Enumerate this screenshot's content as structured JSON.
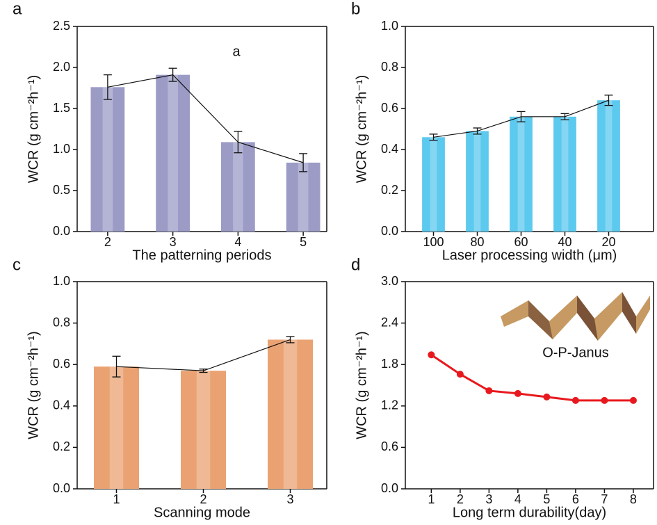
{
  "chart_data": [
    {
      "type": "bar",
      "panel": "a",
      "annotation": "a",
      "xlabel": "The patterning periods",
      "ylabel": "WCR (g cm⁻²h⁻¹)",
      "categories": [
        "2",
        "3",
        "4",
        "5"
      ],
      "values": [
        1.76,
        1.91,
        1.09,
        0.84
      ],
      "errors": [
        0.15,
        0.08,
        0.13,
        0.11
      ],
      "color": "#9b9bc6",
      "ylim": [
        0,
        2.5
      ],
      "yticks": [
        {
          "value": 0,
          "label": "0.0"
        },
        0.5,
        {
          "value": 1,
          "label": "1.0"
        },
        1.5,
        {
          "value": 2,
          "label": "2.0"
        },
        2.5
      ]
    },
    {
      "type": "bar",
      "panel": "b",
      "xlabel": "Laser processing width (μm)",
      "ylabel": "WCR (g cm⁻²h⁻¹)",
      "categories": [
        "100",
        "80",
        "60",
        "40",
        "20"
      ],
      "values": [
        0.46,
        0.49,
        0.56,
        0.56,
        0.64
      ],
      "errors": [
        0.015,
        0.015,
        0.025,
        0.015,
        0.025
      ],
      "color": "#5cc9ee",
      "ylim": [
        0,
        1
      ],
      "yticks": [
        {
          "value": 0,
          "label": "0.0"
        },
        0.2,
        0.4,
        0.6,
        0.8,
        {
          "value": 1,
          "label": "1.0"
        }
      ]
    },
    {
      "type": "bar",
      "panel": "c",
      "xlabel": "Scanning mode",
      "ylabel": "WCR (g cm⁻²h⁻¹)",
      "categories": [
        "1",
        "2",
        "3"
      ],
      "values": [
        0.59,
        0.57,
        0.72
      ],
      "errors": [
        0.05,
        0.008,
        0.015
      ],
      "color": "#eaa272",
      "ylim": [
        0,
        1
      ],
      "yticks": [
        {
          "value": 0,
          "label": "0.0"
        },
        0.2,
        0.4,
        0.6,
        0.8,
        {
          "value": 1,
          "label": "1.0"
        }
      ]
    },
    {
      "type": "line",
      "panel": "d",
      "annotation": "O-P-Janus",
      "xlabel": "Long term durability(day)",
      "ylabel": "WCR (g cm⁻²h⁻¹)",
      "x": [
        1,
        2,
        3,
        4,
        5,
        6,
        7,
        8
      ],
      "values": [
        1.94,
        1.66,
        1.42,
        1.38,
        1.33,
        1.28,
        1.28,
        1.28
      ],
      "color": "#e8191e",
      "xlim": [
        0.1,
        8.7
      ],
      "xticks": [
        1,
        2,
        3,
        4,
        5,
        6,
        7,
        8
      ],
      "ylim": [
        0,
        3
      ],
      "yticks": [
        {
          "value": 0,
          "label": "0.0"
        },
        0.6,
        1.2,
        1.8,
        2.4,
        {
          "value": 3,
          "label": "3.0"
        }
      ]
    }
  ]
}
